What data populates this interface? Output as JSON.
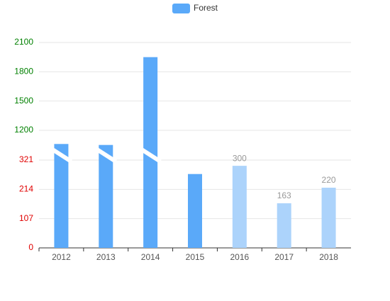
{
  "chart_data": {
    "type": "bar",
    "categories": [
      "2012",
      "2013",
      "2014",
      "2015",
      "2016",
      "2017",
      "2018"
    ],
    "series": [
      {
        "name": "Forest",
        "color": "#5aa9f9",
        "values": [
          1060,
          1050,
          1950,
          270,
          300,
          163,
          220
        ],
        "bar_colors": [
          "#5aa9f9",
          "#5aa9f9",
          "#5aa9f9",
          "#5aa9f9",
          "#acd3fb",
          "#acd3fb",
          "#acd3fb"
        ],
        "show_label": [
          false,
          false,
          false,
          false,
          true,
          true,
          true
        ]
      }
    ],
    "y_segments": [
      {
        "ylim": [
          0,
          321
        ],
        "yticks": [
          0,
          107,
          214,
          321
        ],
        "tick_color": "#e00000"
      },
      {
        "ylim": [
          1200,
          2100
        ],
        "yticks": [
          1200,
          1500,
          1800,
          2100
        ],
        "tick_color": "#008000"
      }
    ],
    "grid": true,
    "legend": "top"
  }
}
